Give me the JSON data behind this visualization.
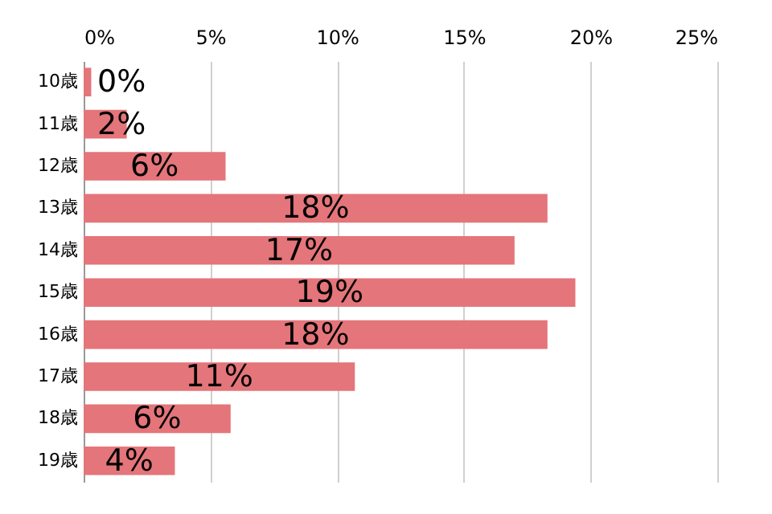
{
  "chart_data": {
    "type": "bar",
    "orientation": "horizontal",
    "categories": [
      "10歳",
      "11歳",
      "12歳",
      "13歳",
      "14歳",
      "15歳",
      "16歳",
      "17歳",
      "18歳",
      "19歳"
    ],
    "values": [
      0.3,
      1.7,
      5.6,
      18.3,
      17.0,
      19.4,
      18.3,
      10.7,
      5.8,
      3.6
    ],
    "value_labels": [
      "0%",
      "2%",
      "6%",
      "18%",
      "17%",
      "19%",
      "18%",
      "11%",
      "6%",
      "4%"
    ],
    "color": "#e4757a",
    "xlim": [
      0,
      25
    ],
    "xticks": [
      {
        "value": 0,
        "label": "0%"
      },
      {
        "value": 5,
        "label": "5%"
      },
      {
        "value": 10,
        "label": "10%"
      },
      {
        "value": 15,
        "label": "15%"
      },
      {
        "value": 20,
        "label": "20%"
      },
      {
        "value": 25,
        "label": "25%"
      }
    ],
    "grid": "x"
  }
}
